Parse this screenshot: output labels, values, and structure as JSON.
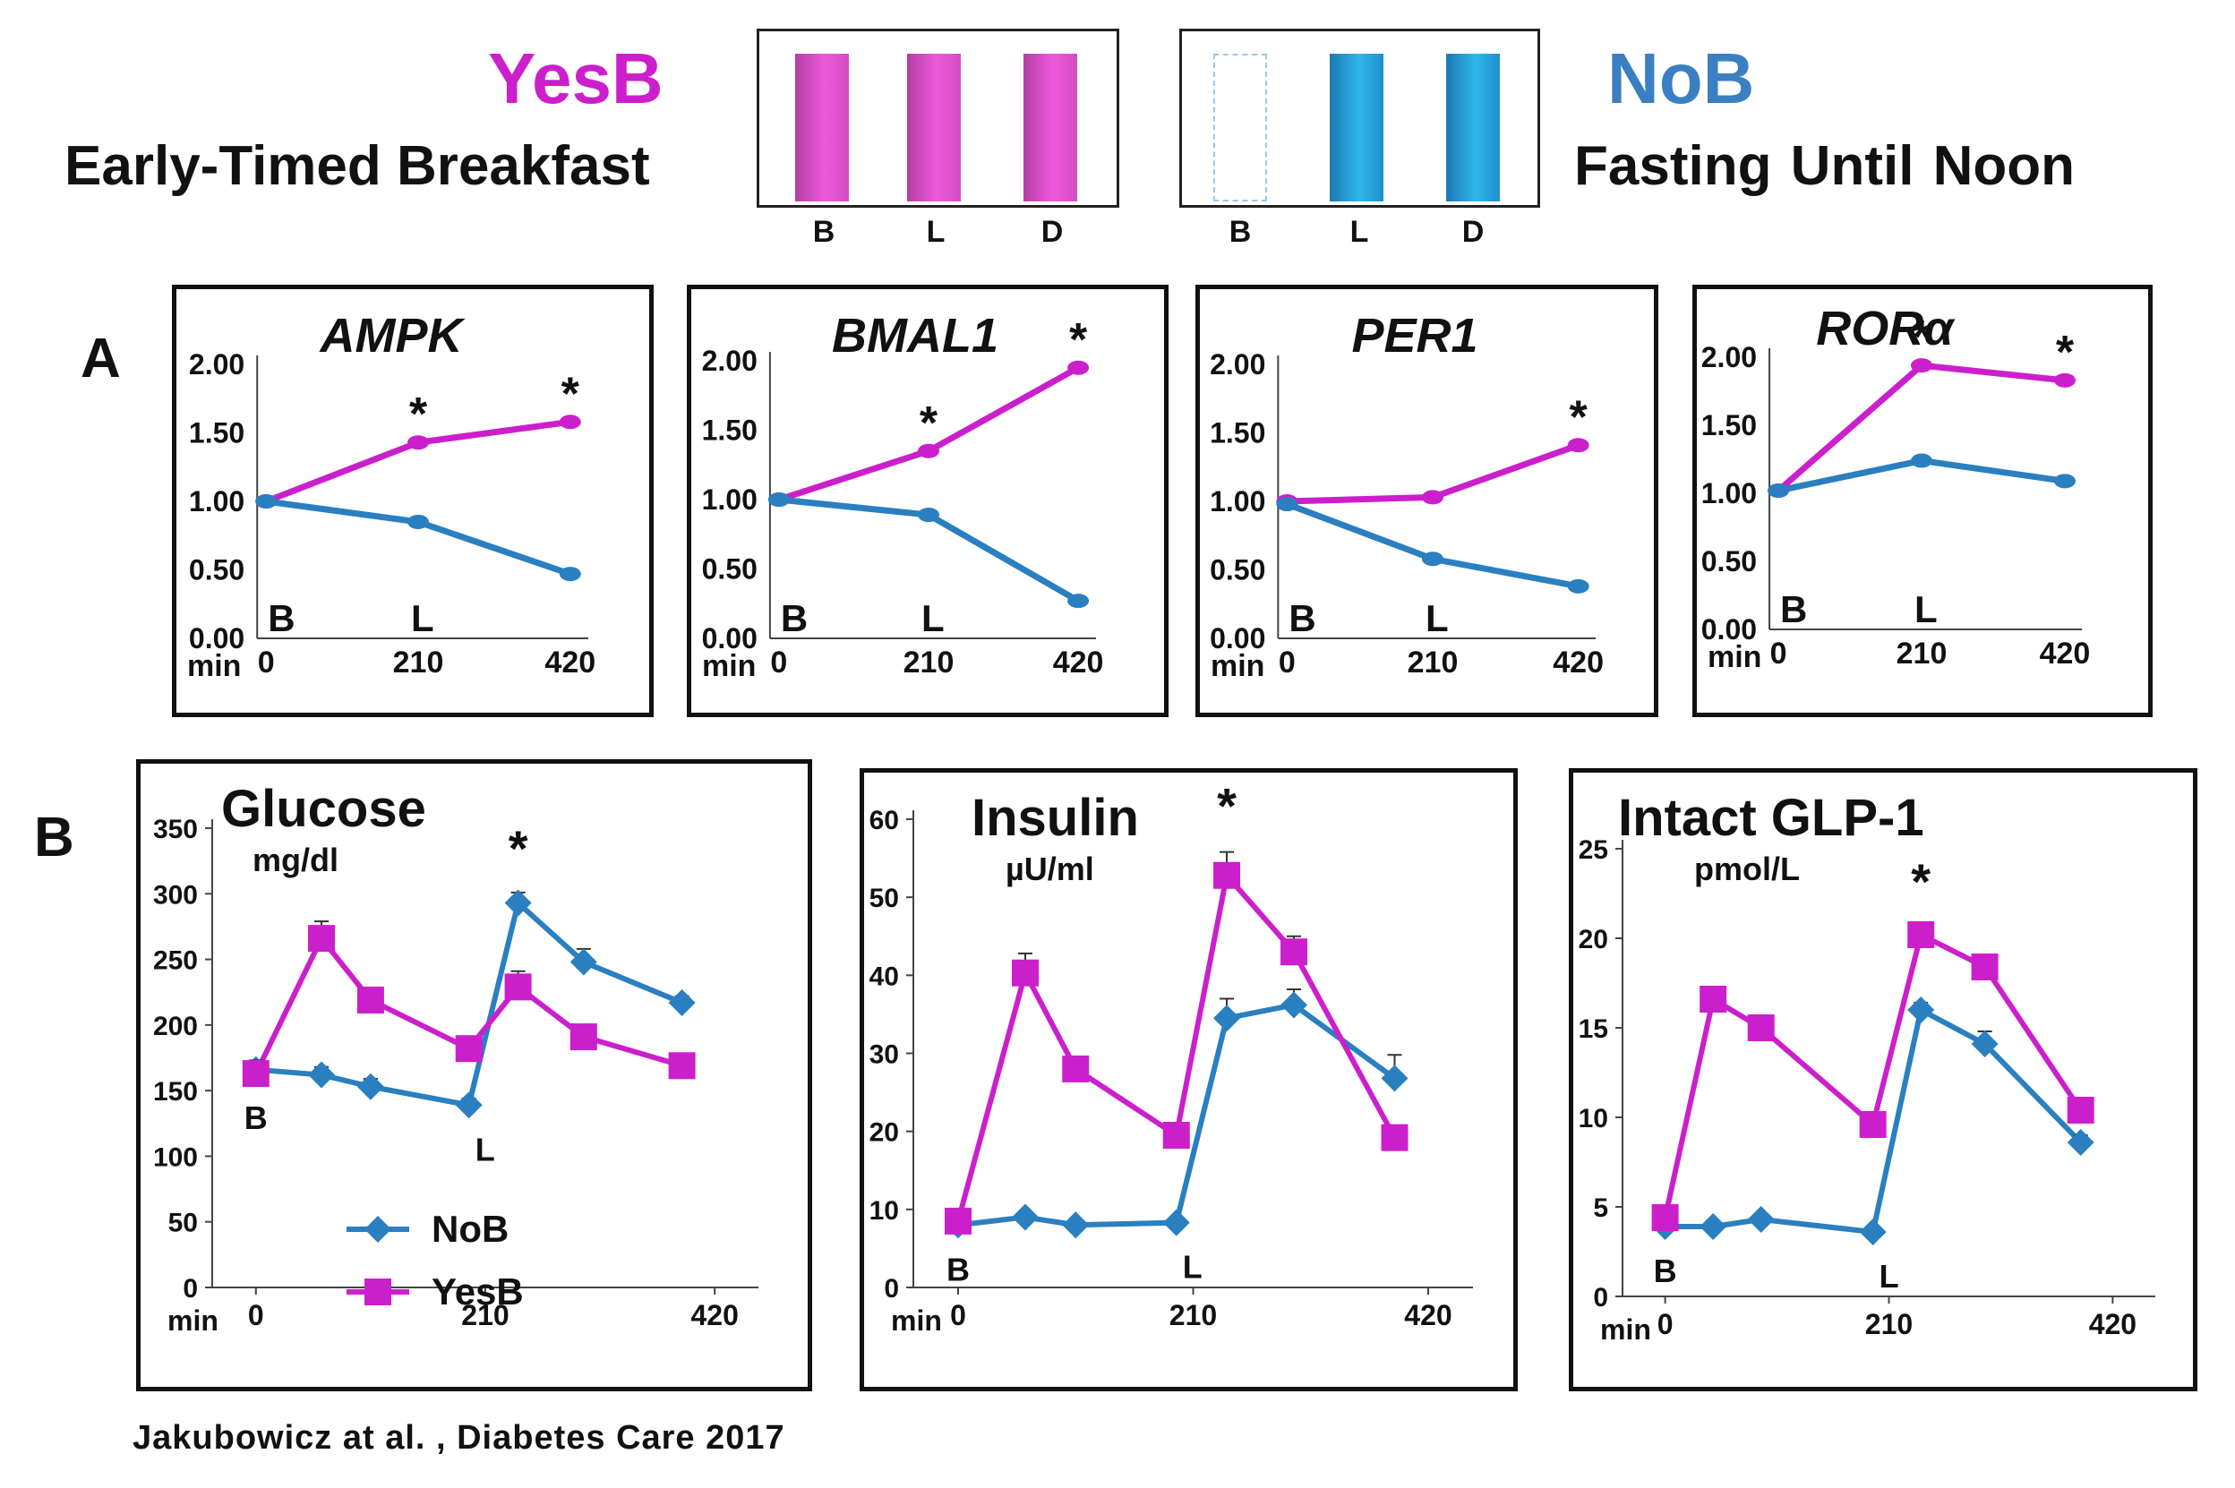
{
  "header": {
    "yesb": {
      "label": "YesB",
      "subtitle": "Early-Timed Breakfast"
    },
    "nob": {
      "label": "NoB",
      "subtitle": "Fasting Until  Noon"
    },
    "meals": [
      "B",
      "L",
      "D"
    ]
  },
  "colors": {
    "yesb": "#cc1fcc",
    "nob": "#2a7fc0",
    "nob_title": "#3a7fc2"
  },
  "sections": {
    "a": "A",
    "b": "B"
  },
  "unit_label": "min",
  "citation": "Jakubowicz  at  al. , Diabetes Care  2017",
  "legend": {
    "nob": "NoB",
    "yesb": "YesB"
  },
  "chart_data": [
    {
      "id": "ampk",
      "type": "line",
      "title": "AMPK",
      "italic": true,
      "x": [
        0,
        210,
        420
      ],
      "xticks": [
        "0",
        "210",
        "420"
      ],
      "xlabel": "min",
      "yticks": [
        "0.00",
        "0.50",
        "1.00",
        "1.50",
        "2.00"
      ],
      "ylim": [
        0,
        2
      ],
      "markers": [
        "B",
        "L"
      ],
      "series": [
        {
          "name": "YesB",
          "values": [
            1.0,
            1.43,
            1.58
          ],
          "stars": [
            false,
            true,
            true
          ]
        },
        {
          "name": "NoB",
          "values": [
            1.0,
            0.85,
            0.47
          ]
        }
      ]
    },
    {
      "id": "bmal1",
      "type": "line",
      "title": "BMAL1",
      "italic": true,
      "x": [
        0,
        210,
        420
      ],
      "xticks": [
        "0",
        "210",
        "420"
      ],
      "xlabel": "min",
      "yticks": [
        "0.00",
        "0.50",
        "1.00",
        "1.50",
        "2.00"
      ],
      "ylim": [
        0,
        2
      ],
      "markers": [
        "B",
        "L"
      ],
      "series": [
        {
          "name": "YesB",
          "values": [
            1.0,
            1.35,
            1.95
          ],
          "stars": [
            false,
            true,
            true
          ]
        },
        {
          "name": "NoB",
          "values": [
            1.0,
            0.89,
            0.27
          ]
        }
      ]
    },
    {
      "id": "per1",
      "type": "line",
      "title": "PER1",
      "italic": true,
      "x": [
        0,
        210,
        420
      ],
      "xticks": [
        "0",
        "210",
        "420"
      ],
      "xlabel": "min",
      "yticks": [
        "0.00",
        "0.50",
        "1.00",
        "1.50",
        "2.00"
      ],
      "ylim": [
        0,
        2
      ],
      "markers": [
        "B",
        "L"
      ],
      "series": [
        {
          "name": "YesB",
          "values": [
            1.0,
            1.03,
            1.41
          ],
          "stars": [
            false,
            false,
            true
          ]
        },
        {
          "name": "NoB",
          "values": [
            0.98,
            0.58,
            0.38
          ]
        }
      ]
    },
    {
      "id": "rora",
      "type": "line",
      "title": "RORα",
      "italic": true,
      "x": [
        0,
        210,
        420
      ],
      "xticks": [
        "0",
        "210",
        "420"
      ],
      "xlabel": "min",
      "yticks": [
        "0.00",
        "0.50",
        "1.00",
        "1.50",
        "2.00"
      ],
      "ylim": [
        0,
        2
      ],
      "markers": [
        "B",
        "L"
      ],
      "series": [
        {
          "name": "YesB",
          "values": [
            1.02,
            1.94,
            1.83
          ],
          "stars": [
            false,
            true,
            true
          ]
        },
        {
          "name": "NoB",
          "values": [
            1.02,
            1.24,
            1.09
          ]
        }
      ]
    },
    {
      "id": "glucose",
      "type": "line",
      "title": "Glucose",
      "unit": "mg/dl",
      "x": [
        0,
        60,
        105,
        195,
        240,
        300,
        390
      ],
      "xticks": [
        "0",
        "210",
        "420"
      ],
      "xtick_values": [
        0,
        210,
        420
      ],
      "xlim": [
        -40,
        460
      ],
      "xlabel": "min",
      "yticks": [
        "0",
        "50",
        "100",
        "150",
        "200",
        "250",
        "300",
        "350"
      ],
      "ylim": [
        0,
        350
      ],
      "markers": [
        "B",
        "L"
      ],
      "star_x": 240,
      "series": [
        {
          "name": "NoB",
          "values": [
            166,
            162,
            153,
            139,
            293,
            248,
            217
          ],
          "errors": [
            6,
            6,
            6,
            5,
            8,
            10,
            5
          ]
        },
        {
          "name": "YesB",
          "values": [
            163,
            266,
            219,
            182,
            229,
            191,
            169
          ],
          "errors": [
            10,
            13,
            9,
            6,
            12,
            9,
            6
          ]
        }
      ],
      "show_legend": true
    },
    {
      "id": "insulin",
      "type": "line",
      "title": "Insulin",
      "unit": "µU/ml",
      "x": [
        0,
        60,
        105,
        195,
        240,
        300,
        390
      ],
      "xticks": [
        "0",
        "210",
        "420"
      ],
      "xtick_values": [
        0,
        210,
        420
      ],
      "xlim": [
        -40,
        460
      ],
      "xlabel": "min",
      "yticks": [
        "0",
        "10",
        "20",
        "30",
        "40",
        "50",
        "60"
      ],
      "ylim": [
        0,
        60
      ],
      "markers": [
        "B",
        "L"
      ],
      "star_x": 240,
      "series": [
        {
          "name": "NoB",
          "values": [
            8.0,
            9.0,
            8.0,
            8.3,
            34.5,
            36.2,
            26.8
          ],
          "errors": [
            0.5,
            0.5,
            0.5,
            0.5,
            2.5,
            2.0,
            3.0
          ]
        },
        {
          "name": "YesB",
          "values": [
            8.5,
            40.3,
            28.0,
            19.5,
            52.8,
            43.0,
            19.2
          ],
          "errors": [
            0.5,
            2.5,
            1.2,
            0.5,
            3.0,
            2.0,
            0.5
          ]
        }
      ]
    },
    {
      "id": "glp1",
      "type": "line",
      "title": "Intact GLP-1",
      "unit": "pmol/L",
      "x": [
        0,
        45,
        90,
        195,
        240,
        300,
        390
      ],
      "xticks": [
        "0",
        "210",
        "420"
      ],
      "xtick_values": [
        0,
        210,
        420
      ],
      "xlim": [
        -40,
        460
      ],
      "xlabel": "min",
      "yticks": [
        "0",
        "5",
        "10",
        "15",
        "20",
        "25"
      ],
      "ylim": [
        0,
        25
      ],
      "markers": [
        "B",
        "L"
      ],
      "star_x": 240,
      "series": [
        {
          "name": "NoB",
          "values": [
            3.9,
            3.9,
            4.3,
            3.6,
            16.0,
            14.1,
            8.6
          ],
          "errors": [
            0.3,
            0.3,
            0.3,
            0.3,
            0.4,
            0.7,
            0.4
          ]
        },
        {
          "name": "YesB",
          "values": [
            4.4,
            16.6,
            15.0,
            9.6,
            20.2,
            18.4,
            10.4
          ],
          "errors": [
            0.3,
            0.3,
            0.3,
            0.3,
            0.5,
            0.7,
            0.4
          ]
        }
      ]
    }
  ]
}
